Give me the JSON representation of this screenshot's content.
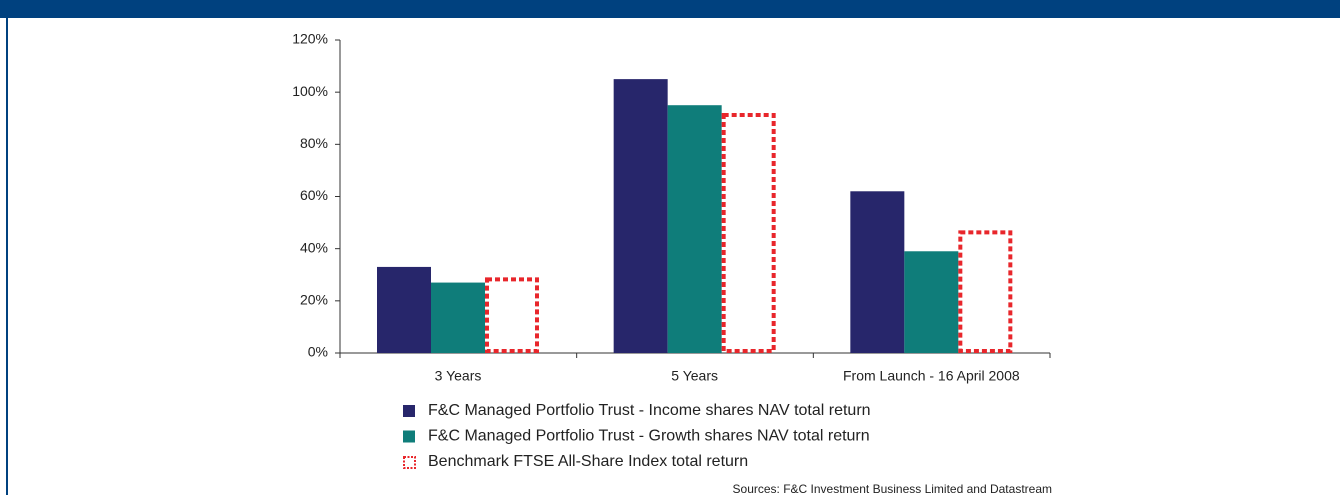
{
  "chart_data": {
    "type": "bar",
    "categories": [
      "3 Years",
      "5 Years",
      "From Launch - 16 April 2008"
    ],
    "series": [
      {
        "name": "F&C Managed Portfolio Trust - Income shares NAV total return",
        "color": "#27266b",
        "values": [
          33,
          105,
          62
        ]
      },
      {
        "name": "F&C Managed Portfolio Trust - Growth shares NAV total return",
        "color": "#0f7d7a",
        "values": [
          27,
          95,
          39
        ]
      },
      {
        "name": "Benchmark FTSE All-Share Index total return",
        "color": "#e8262b",
        "values": [
          29,
          92,
          47
        ]
      }
    ],
    "ylim": [
      0,
      120
    ],
    "yticks": [
      {
        "value": 0,
        "label": "0%"
      },
      {
        "value": 20,
        "label": "20%"
      },
      {
        "value": 40,
        "label": "40%"
      },
      {
        "value": 60,
        "label": "60%"
      },
      {
        "value": 80,
        "label": "80%"
      },
      {
        "value": 100,
        "label": "100%"
      },
      {
        "value": 120,
        "label": "120%"
      }
    ],
    "source": "Sources: F&C Investment Business Limited and Datastream"
  }
}
